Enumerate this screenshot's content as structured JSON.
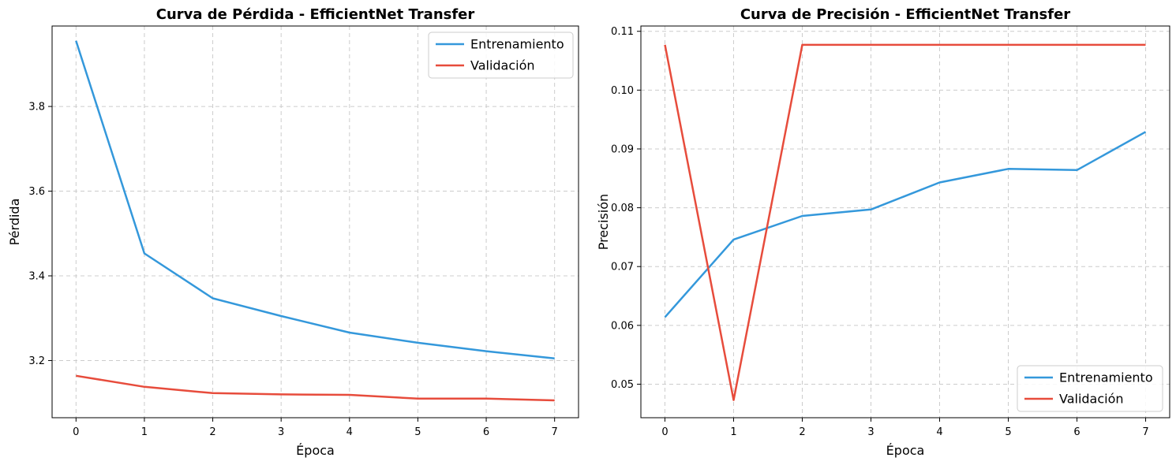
{
  "colors": {
    "train": "#3498db",
    "val": "#e74c3c",
    "grid": "#cccccc",
    "axis": "#000000"
  },
  "chart_data": [
    {
      "type": "line",
      "title": "Curva de Pérdida - EfficientNet Transfer",
      "xlabel": "Época",
      "ylabel": "Pérdida",
      "x": [
        0,
        1,
        2,
        3,
        4,
        5,
        6,
        7
      ],
      "xticks": [
        0,
        1,
        2,
        3,
        4,
        5,
        6,
        7
      ],
      "yticks": [
        3.2,
        3.4,
        3.6,
        3.8
      ],
      "ytick_labels": [
        "3.2",
        "3.4",
        "3.6",
        "3.8"
      ],
      "xlim": [
        -0.35,
        7.35
      ],
      "ylim": [
        3.065,
        3.99
      ],
      "grid": true,
      "legend_position": "top-right",
      "series": [
        {
          "name": "Entrenamiento",
          "color_key": "train",
          "values": [
            3.955,
            3.453,
            3.347,
            3.305,
            3.266,
            3.242,
            3.222,
            3.205
          ]
        },
        {
          "name": "Validación",
          "color_key": "val",
          "values": [
            3.164,
            3.138,
            3.123,
            3.12,
            3.119,
            3.11,
            3.11,
            3.106
          ]
        }
      ]
    },
    {
      "type": "line",
      "title": "Curva de Precisión - EfficientNet Transfer",
      "xlabel": "Época",
      "ylabel": "Precisión",
      "x": [
        0,
        1,
        2,
        3,
        4,
        5,
        6,
        7
      ],
      "xticks": [
        0,
        1,
        2,
        3,
        4,
        5,
        6,
        7
      ],
      "yticks": [
        0.05,
        0.06,
        0.07,
        0.08,
        0.09,
        0.1,
        0.11
      ],
      "ytick_labels": [
        "0.05",
        "0.06",
        "0.07",
        "0.08",
        "0.09",
        "0.10",
        "0.11"
      ],
      "xlim": [
        -0.35,
        7.35
      ],
      "ylim": [
        0.0443,
        0.1109
      ],
      "grid": true,
      "legend_position": "bottom-right",
      "series": [
        {
          "name": "Entrenamiento",
          "color_key": "train",
          "values": [
            0.0614,
            0.0746,
            0.0786,
            0.0797,
            0.0843,
            0.0866,
            0.0864,
            0.0929
          ]
        },
        {
          "name": "Validación",
          "color_key": "val",
          "values": [
            0.1077,
            0.0473,
            0.1077,
            0.1077,
            0.1077,
            0.1077,
            0.1077,
            0.1077
          ]
        }
      ]
    }
  ]
}
